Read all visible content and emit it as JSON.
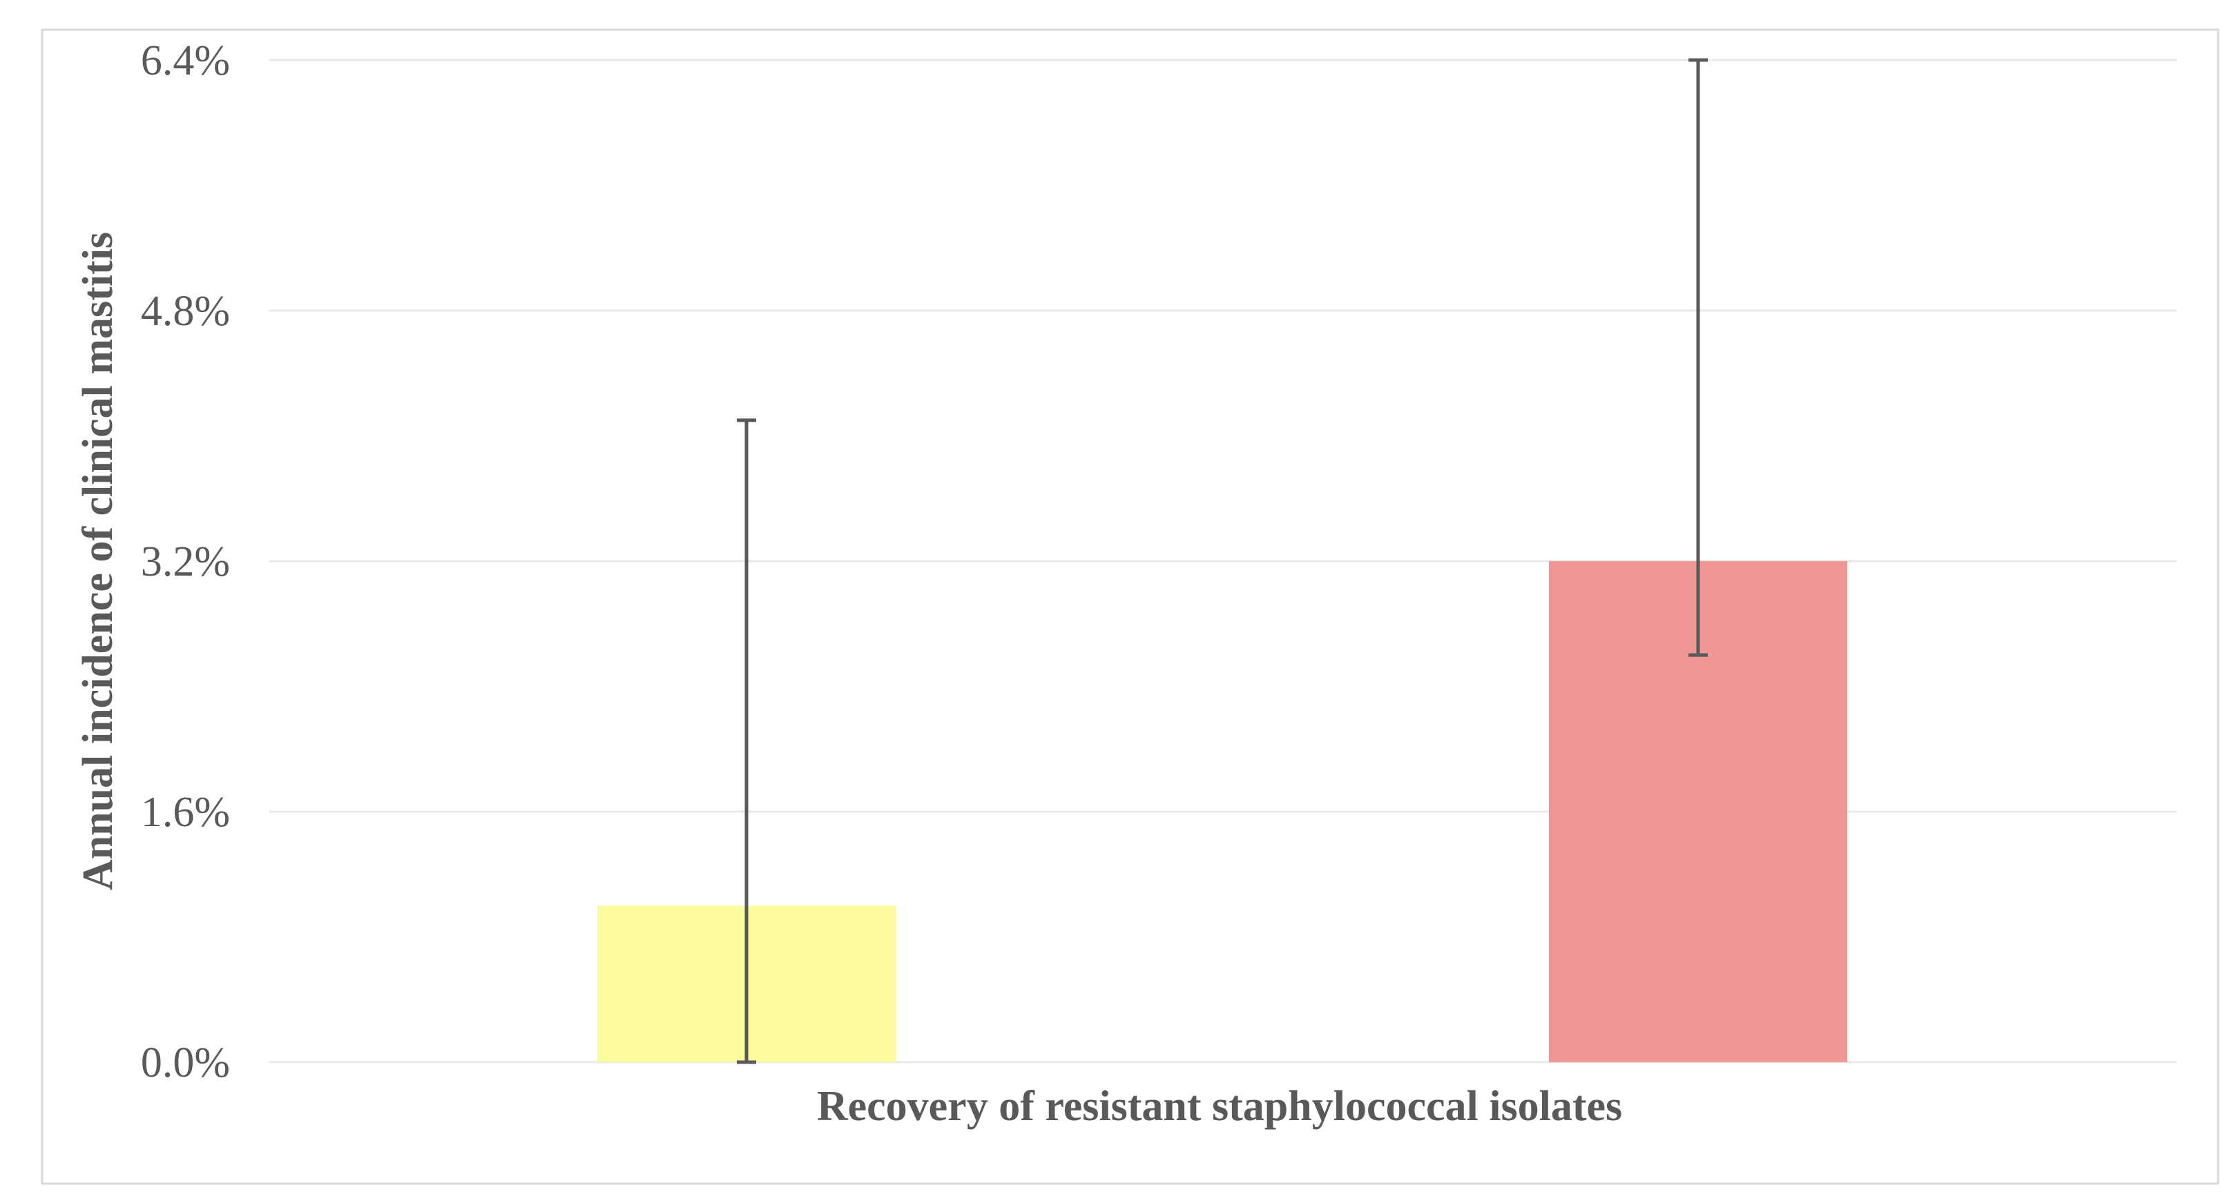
{
  "figure": {
    "background": "#FFFFFF",
    "border_color": "#D9D9D9"
  },
  "chart_data": {
    "type": "bar",
    "title": "",
    "xlabel": "Recovery of resistant staphylococcal isolates",
    "ylabel": "Annual incidence of clinical mastitis",
    "ylim": [
      0,
      6.4
    ],
    "grid": true,
    "legend": "none",
    "y_ticks": [
      {
        "value": 0.0,
        "label": "0.0%"
      },
      {
        "value": 1.6,
        "label": "1.6%"
      },
      {
        "value": 3.2,
        "label": "3.2%"
      },
      {
        "value": 4.8,
        "label": "4.8%"
      },
      {
        "value": 6.4,
        "label": "6.4%"
      }
    ],
    "categories": [
      "",
      ""
    ],
    "values": [
      1.0,
      3.2
    ],
    "bars": [
      {
        "name": "yellow-bar",
        "value_pct": 1.0,
        "error_low_pct": 0.0,
        "error_high_pct": 4.1,
        "fill": "#FDFC9D"
      },
      {
        "name": "red-bar",
        "value_pct": 3.2,
        "error_low_pct": 2.6,
        "error_high_pct": 6.4,
        "fill": "#EF9797"
      }
    ],
    "gridline_color": "#E8E8E8",
    "error_bar_color": "#595959",
    "text_color": "#595959"
  }
}
